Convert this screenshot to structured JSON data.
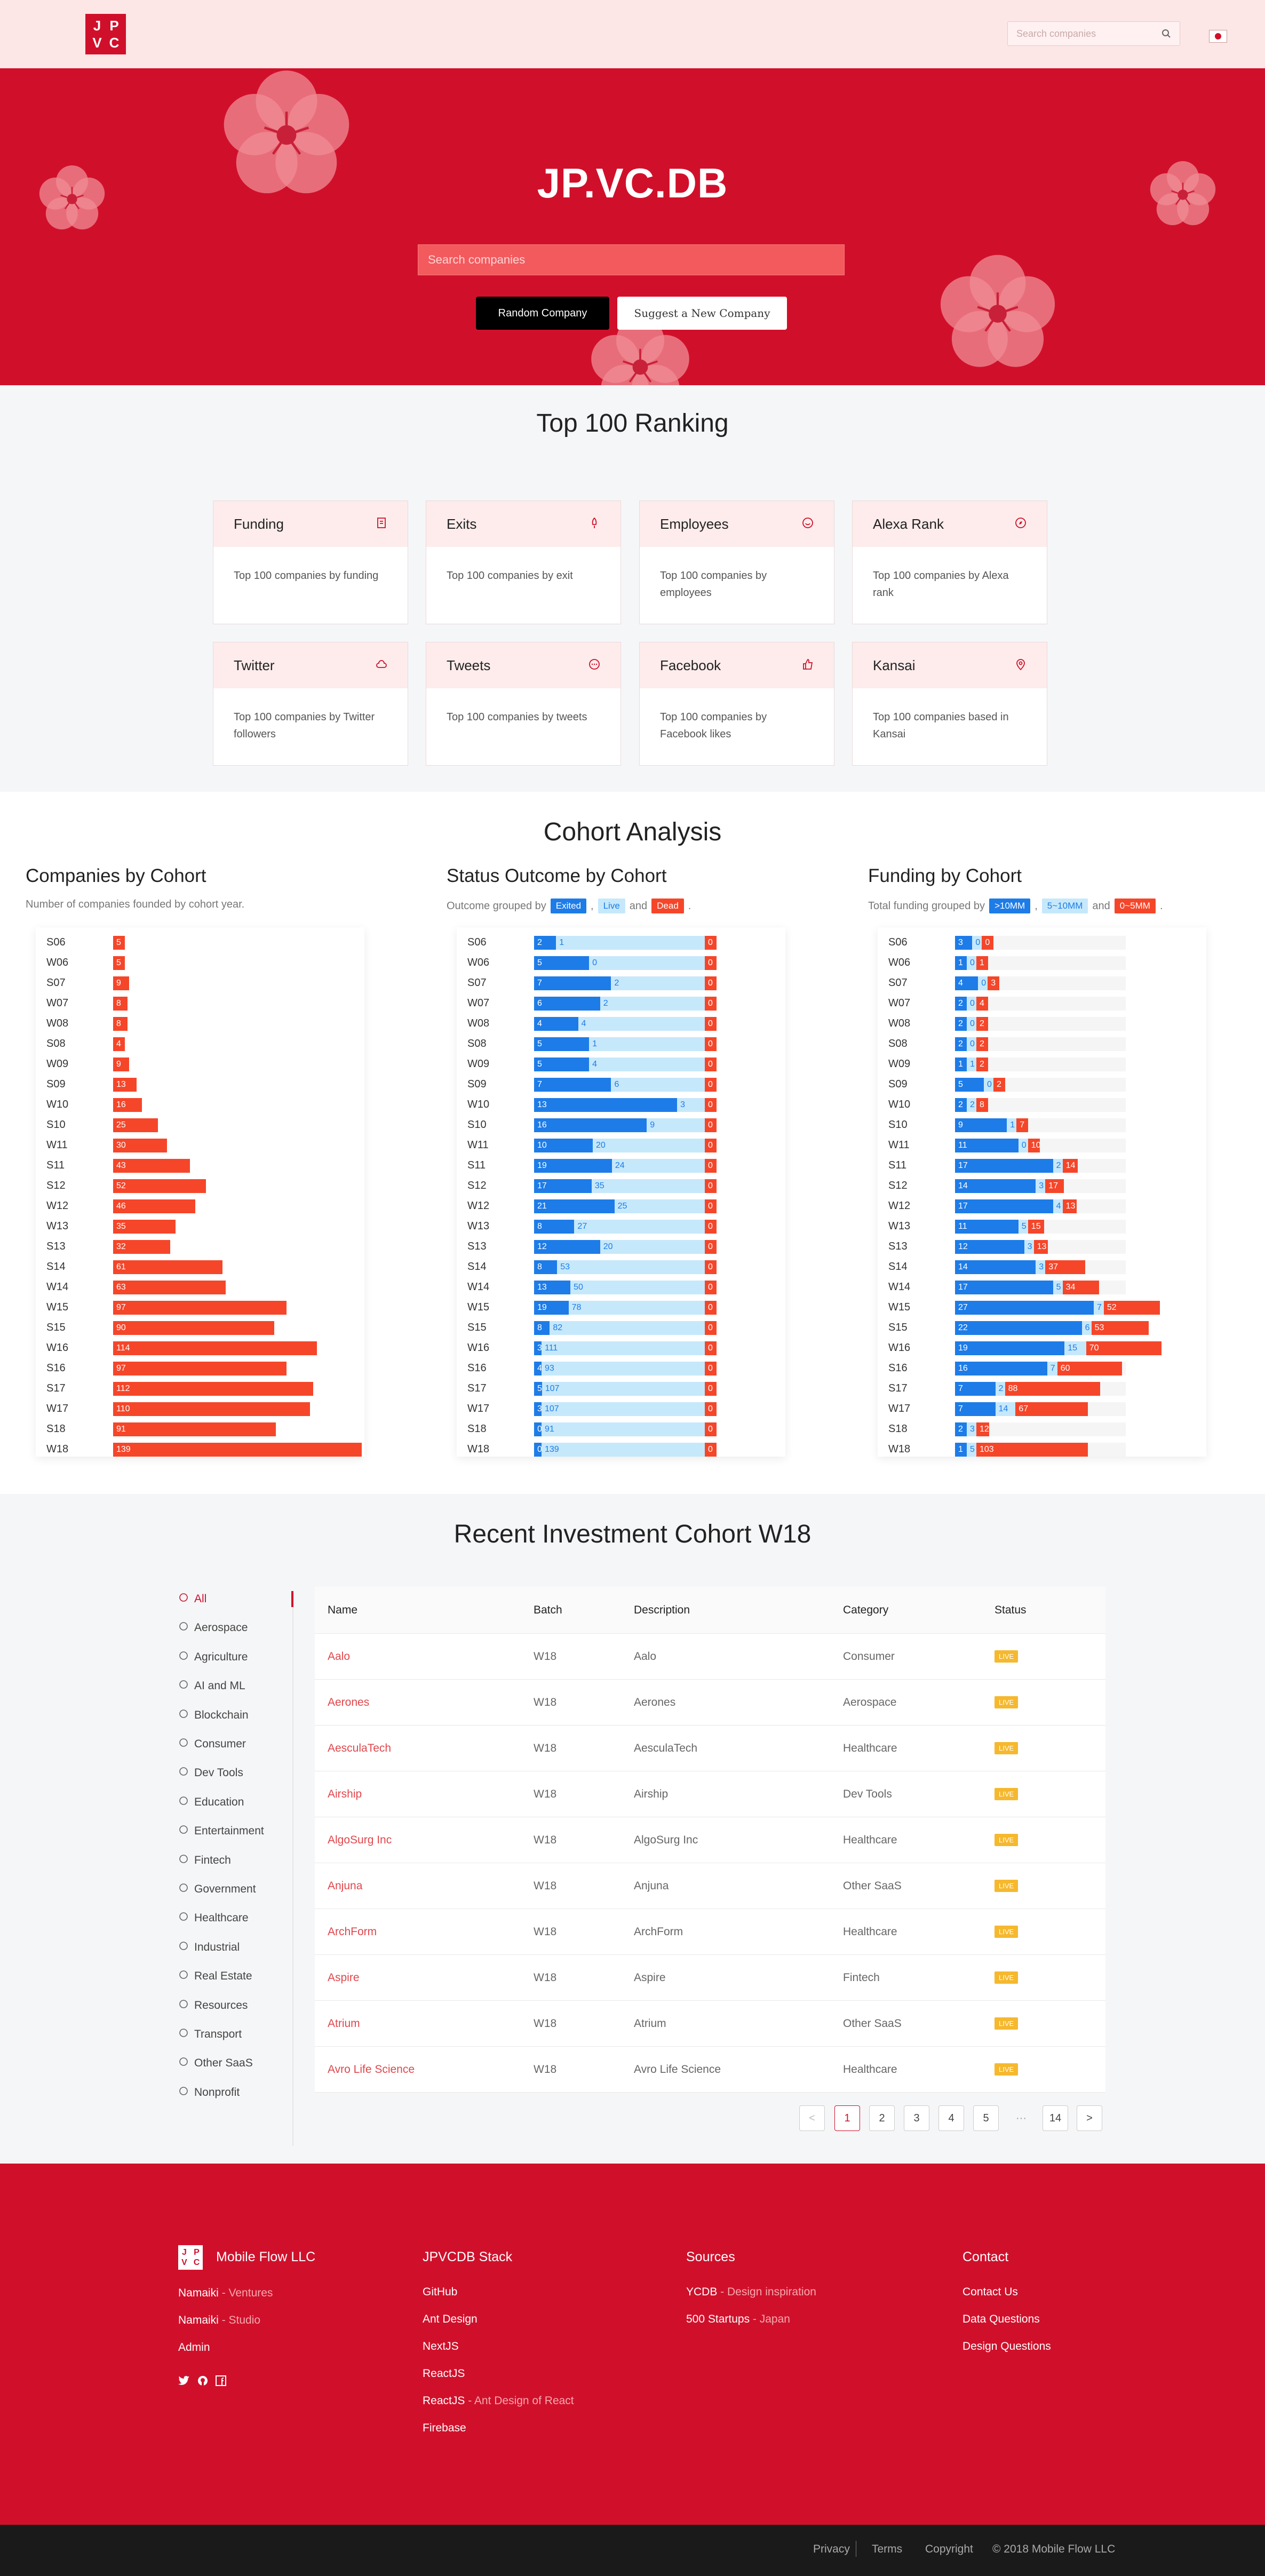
{
  "header": {
    "logo_letters": [
      "J",
      "P",
      "V",
      "C"
    ],
    "search_placeholder": "Search companies"
  },
  "hero": {
    "title": "JP.VC.DB",
    "search_placeholder": "Search companies",
    "random_label": "Random Company",
    "suggest_label": "Suggest a New Company"
  },
  "ranking": {
    "title": "Top 100 Ranking",
    "cards": [
      {
        "title": "Funding",
        "desc": "Top 100 companies by funding",
        "icon": "document-icon"
      },
      {
        "title": "Exits",
        "desc": "Top 100 companies by exit",
        "icon": "rocket-icon"
      },
      {
        "title": "Employees",
        "desc": "Top 100 companies by employees",
        "icon": "smile-icon"
      },
      {
        "title": "Alexa Rank",
        "desc": "Top 100 companies by Alexa rank",
        "icon": "compass-icon"
      },
      {
        "title": "Twitter",
        "desc": "Top 100 companies by Twitter followers",
        "icon": "cloud-icon"
      },
      {
        "title": "Tweets",
        "desc": "Top 100 companies by tweets",
        "icon": "message-icon"
      },
      {
        "title": "Facebook",
        "desc": "Top 100 companies by Facebook likes",
        "icon": "like-icon"
      },
      {
        "title": "Kansai",
        "desc": "Top 100 companies based in Kansai",
        "icon": "location-icon"
      }
    ]
  },
  "cohort": {
    "title": "Cohort Analysis",
    "companies": {
      "title": "Companies by Cohort",
      "subtitle": "Number of companies founded by cohort year."
    },
    "status": {
      "title": "Status Outcome by Cohort",
      "subtitle_prefix": "Outcome grouped by",
      "tags": [
        "Exited",
        "Live",
        "Dead"
      ],
      "sep": ",",
      "and": "and",
      "end": "."
    },
    "funding": {
      "title": "Funding by Cohort",
      "subtitle_prefix": "Total funding grouped by",
      "tags": [
        ">10MM",
        "5~10MM",
        "0~5MM"
      ],
      "sep": ",",
      "and": "and",
      "end": "."
    }
  },
  "chart_data": [
    {
      "type": "bar",
      "title": "Companies by Cohort",
      "categories": [
        "S06",
        "W06",
        "S07",
        "W07",
        "W08",
        "S08",
        "W09",
        "S09",
        "W10",
        "S10",
        "W11",
        "S11",
        "S12",
        "W12",
        "W13",
        "S13",
        "S14",
        "W14",
        "W15",
        "S15",
        "W16",
        "S16",
        "S17",
        "W17",
        "S18",
        "W18"
      ],
      "values": [
        5,
        5,
        9,
        8,
        8,
        4,
        9,
        13,
        16,
        25,
        30,
        43,
        52,
        46,
        35,
        32,
        61,
        63,
        97,
        90,
        114,
        97,
        112,
        110,
        91,
        139
      ]
    },
    {
      "type": "bar",
      "title": "Status Outcome by Cohort",
      "stacked": true,
      "categories": [
        "S06",
        "W06",
        "S07",
        "W07",
        "W08",
        "S08",
        "W09",
        "S09",
        "W10",
        "S10",
        "W11",
        "S11",
        "S12",
        "W12",
        "W13",
        "S13",
        "S14",
        "W14",
        "W15",
        "S15",
        "W16",
        "S16",
        "S17",
        "W17",
        "S18",
        "W18"
      ],
      "series": [
        {
          "name": "Exited",
          "values": [
            2,
            5,
            7,
            6,
            4,
            5,
            5,
            7,
            13,
            16,
            10,
            19,
            17,
            21,
            8,
            12,
            8,
            13,
            19,
            8,
            3,
            4,
            5,
            3,
            0,
            0
          ]
        },
        {
          "name": "Live",
          "values": [
            1,
            0,
            2,
            2,
            4,
            1,
            4,
            6,
            3,
            9,
            20,
            24,
            35,
            25,
            27,
            20,
            53,
            50,
            78,
            82,
            111,
            93,
            107,
            107,
            91,
            139
          ]
        },
        {
          "name": "Dead",
          "values": [
            0,
            0,
            0,
            0,
            0,
            0,
            0,
            0,
            0,
            0,
            0,
            0,
            0,
            0,
            0,
            0,
            0,
            0,
            0,
            0,
            0,
            0,
            0,
            0,
            0,
            0
          ]
        }
      ]
    },
    {
      "type": "bar",
      "title": "Funding by Cohort",
      "stacked": true,
      "categories": [
        "S06",
        "W06",
        "S07",
        "W07",
        "W08",
        "S08",
        "W09",
        "S09",
        "W10",
        "S10",
        "W11",
        "S11",
        "S12",
        "W12",
        "W13",
        "S13",
        "S14",
        "W14",
        "W15",
        "S15",
        "W16",
        "S16",
        "S17",
        "W17",
        "S18",
        "W18"
      ],
      "series": [
        {
          "name": ">10MM",
          "values": [
            3,
            1,
            4,
            2,
            2,
            2,
            1,
            5,
            2,
            9,
            11,
            17,
            14,
            17,
            11,
            12,
            14,
            17,
            27,
            22,
            19,
            16,
            7,
            7,
            2,
            1
          ]
        },
        {
          "name": "5~10MM",
          "values": [
            0,
            0,
            0,
            0,
            0,
            0,
            1,
            0,
            2,
            1,
            0,
            2,
            3,
            4,
            5,
            3,
            3,
            5,
            7,
            6,
            15,
            7,
            2,
            14,
            3,
            5
          ]
        },
        {
          "name": "0~5MM",
          "values": [
            0,
            1,
            3,
            4,
            2,
            2,
            2,
            2,
            8,
            7,
            10,
            14,
            17,
            13,
            15,
            13,
            37,
            34,
            52,
            53,
            70,
            60,
            88,
            67,
            12,
            103
          ]
        }
      ]
    }
  ],
  "investment": {
    "title": "Recent Investment Cohort W18",
    "categories": [
      "All",
      "Aerospace",
      "Agriculture",
      "AI and ML",
      "Blockchain",
      "Consumer",
      "Dev Tools",
      "Education",
      "Entertainment",
      "Fintech",
      "Government",
      "Healthcare",
      "Industrial",
      "Real Estate",
      "Resources",
      "Transport",
      "Other SaaS",
      "Nonprofit"
    ],
    "columns": [
      "Name",
      "Batch",
      "Description",
      "Category",
      "Status"
    ],
    "rows": [
      {
        "name": "Aalo",
        "batch": "W18",
        "desc": "Aalo",
        "category": "Consumer",
        "status": "LIVE"
      },
      {
        "name": "Aerones",
        "batch": "W18",
        "desc": "Aerones",
        "category": "Aerospace",
        "status": "LIVE"
      },
      {
        "name": "AesculaTech",
        "batch": "W18",
        "desc": "AesculaTech",
        "category": "Healthcare",
        "status": "LIVE"
      },
      {
        "name": "Airship",
        "batch": "W18",
        "desc": "Airship",
        "category": "Dev Tools",
        "status": "LIVE"
      },
      {
        "name": "AlgoSurg Inc",
        "batch": "W18",
        "desc": "AlgoSurg Inc",
        "category": "Healthcare",
        "status": "LIVE"
      },
      {
        "name": "Anjuna",
        "batch": "W18",
        "desc": "Anjuna",
        "category": "Other SaaS",
        "status": "LIVE"
      },
      {
        "name": "ArchForm",
        "batch": "W18",
        "desc": "ArchForm",
        "category": "Healthcare",
        "status": "LIVE"
      },
      {
        "name": "Aspire",
        "batch": "W18",
        "desc": "Aspire",
        "category": "Fintech",
        "status": "LIVE"
      },
      {
        "name": "Atrium",
        "batch": "W18",
        "desc": "Atrium",
        "category": "Other SaaS",
        "status": "LIVE"
      },
      {
        "name": "Avro Life Science",
        "batch": "W18",
        "desc": "Avro Life Science",
        "category": "Healthcare",
        "status": "LIVE"
      }
    ],
    "pagination": {
      "prev": "<",
      "pages": [
        "1",
        "2",
        "3",
        "4",
        "5"
      ],
      "ellipsis": "···",
      "last": "14",
      "next": ">"
    }
  },
  "footer": {
    "brand": "Mobile Flow LLC",
    "links1": [
      {
        "a": "Namaiki",
        "b": " - Ventures"
      },
      {
        "a": "Namaiki",
        "b": " - Studio"
      },
      {
        "a": "Admin",
        "b": ""
      }
    ],
    "stack_title": "JPVCDB Stack",
    "stack": [
      {
        "a": "GitHub",
        "b": ""
      },
      {
        "a": "Ant Design",
        "b": ""
      },
      {
        "a": "NextJS",
        "b": ""
      },
      {
        "a": "ReactJS",
        "b": ""
      },
      {
        "a": "ReactJS",
        "b": " - Ant Design of React"
      },
      {
        "a": "Firebase",
        "b": ""
      }
    ],
    "sources_title": "Sources",
    "sources": [
      {
        "a": "YCDB",
        "b": " - Design inspiration"
      },
      {
        "a": "500 Startups",
        "b": " - Japan"
      }
    ],
    "contact_title": "Contact",
    "contact": [
      "Contact Us",
      "Data Questions",
      "Design Questions"
    ],
    "bottom": {
      "privacy": "Privacy",
      "terms": "Terms",
      "copyright": "Copyright",
      "year": "© 2018 Mobile Flow LLC"
    }
  }
}
